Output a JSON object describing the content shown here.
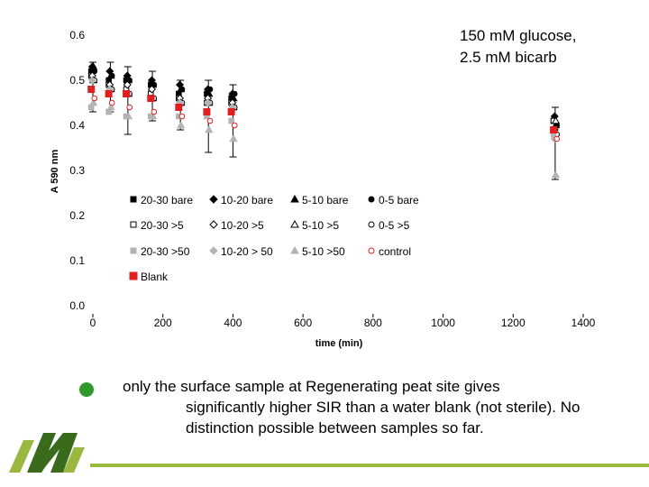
{
  "chart_data": {
    "type": "scatter",
    "title": "",
    "xlabel": "time (min)",
    "ylabel": "A 590 nm",
    "xlim": [
      0,
      1400
    ],
    "ylim": [
      0,
      0.6
    ],
    "x_ticks": [
      0,
      200,
      400,
      600,
      800,
      1000,
      1200,
      1400
    ],
    "y_ticks": [
      "0.0",
      "0.1",
      "0.2",
      "0.3",
      "0.4",
      "0.5",
      "0.6"
    ],
    "grid": false,
    "legend_position": "center, inside plot",
    "x": [
      0,
      50,
      100,
      170,
      250,
      330,
      400,
      1320
    ],
    "series": [
      {
        "name": "20-30 bare",
        "marker": "square",
        "filled": true,
        "color": "#000000",
        "values": [
          0.52,
          0.5,
          0.5,
          0.49,
          0.47,
          0.47,
          0.46,
          0.41
        ]
      },
      {
        "name": "10-20 bare",
        "marker": "diamond",
        "filled": true,
        "color": "#000000",
        "values": [
          0.53,
          0.52,
          0.51,
          0.5,
          0.49,
          0.48,
          0.47,
          0.42
        ]
      },
      {
        "name": "5-10 bare",
        "marker": "triangle",
        "filled": true,
        "color": "#000000",
        "values": [
          0.53,
          0.51,
          0.5,
          0.49,
          0.48,
          0.47,
          0.46,
          0.4
        ]
      },
      {
        "name": "0-5 bare",
        "marker": "circle",
        "filled": true,
        "color": "#000000",
        "values": [
          0.52,
          0.51,
          0.5,
          0.49,
          0.48,
          0.48,
          0.47,
          0.4
        ]
      },
      {
        "name": "20-30 >5",
        "marker": "square",
        "filled": false,
        "color": "#000000",
        "values": [
          0.51,
          0.49,
          0.48,
          0.47,
          0.46,
          0.45,
          0.45,
          0.41
        ]
      },
      {
        "name": "10-20 >5",
        "marker": "diamond",
        "filled": false,
        "color": "#000000",
        "values": [
          0.51,
          0.49,
          0.49,
          0.48,
          0.46,
          0.46,
          0.45,
          0.39
        ]
      },
      {
        "name": "5-10 >5",
        "marker": "triangle",
        "filled": false,
        "color": "#000000",
        "values": [
          0.5,
          0.48,
          0.47,
          0.46,
          0.45,
          0.45,
          0.44,
          0.41
        ]
      },
      {
        "name": "0-5 >5",
        "marker": "circle",
        "filled": false,
        "color": "#000000",
        "values": [
          0.5,
          0.48,
          0.47,
          0.46,
          0.45,
          0.45,
          0.44,
          0.38
        ]
      },
      {
        "name": "20-30 >50",
        "marker": "square",
        "filled": true,
        "color": "#b3b3b3",
        "values": [
          0.44,
          0.43,
          0.42,
          0.42,
          0.42,
          0.42,
          0.41,
          0.38
        ]
      },
      {
        "name": "10-20 > 50",
        "marker": "diamond",
        "filled": true,
        "color": "#b3b3b3",
        "values": [
          0.5,
          0.48,
          0.47,
          0.46,
          0.45,
          0.45,
          0.44,
          0.37
        ]
      },
      {
        "name": "5-10 >50",
        "marker": "triangle",
        "filled": true,
        "color": "#b3b3b3",
        "values": [
          0.45,
          0.44,
          0.42,
          0.42,
          0.4,
          0.39,
          0.37,
          0.29
        ]
      },
      {
        "name": "control",
        "marker": "circle",
        "filled": false,
        "color": "#e02020",
        "values": [
          0.46,
          0.45,
          0.44,
          0.43,
          0.42,
          0.41,
          0.4,
          0.37
        ]
      },
      {
        "name": "Blank",
        "marker": "square",
        "filled": true,
        "color": "#e02020",
        "values": [
          0.48,
          0.47,
          0.47,
          0.46,
          0.44,
          0.43,
          0.43,
          0.39
        ]
      }
    ],
    "error_bars": [
      {
        "x": 0,
        "low": 0.43,
        "high": 0.54
      },
      {
        "x": 50,
        "low": 0.43,
        "high": 0.54
      },
      {
        "x": 100,
        "low": 0.38,
        "high": 0.53
      },
      {
        "x": 170,
        "low": 0.41,
        "high": 0.52
      },
      {
        "x": 250,
        "low": 0.39,
        "high": 0.5
      },
      {
        "x": 330,
        "low": 0.34,
        "high": 0.5
      },
      {
        "x": 400,
        "low": 0.33,
        "high": 0.49
      },
      {
        "x": 1320,
        "low": 0.28,
        "high": 0.44
      }
    ]
  },
  "annotation": "150 mM glucose,\n2.5 mM bicarb",
  "note": {
    "line1": "only the surface sample at Regenerating peat site gives",
    "rest": "significantly higher SIR than a water blank (not sterile). No distinction possible between samples so far."
  },
  "colors": {
    "bullet": "#2f9a2a",
    "logo_dark": "#3a6b1c",
    "logo_light": "#9ab840",
    "footer_line": "#9ab840"
  }
}
